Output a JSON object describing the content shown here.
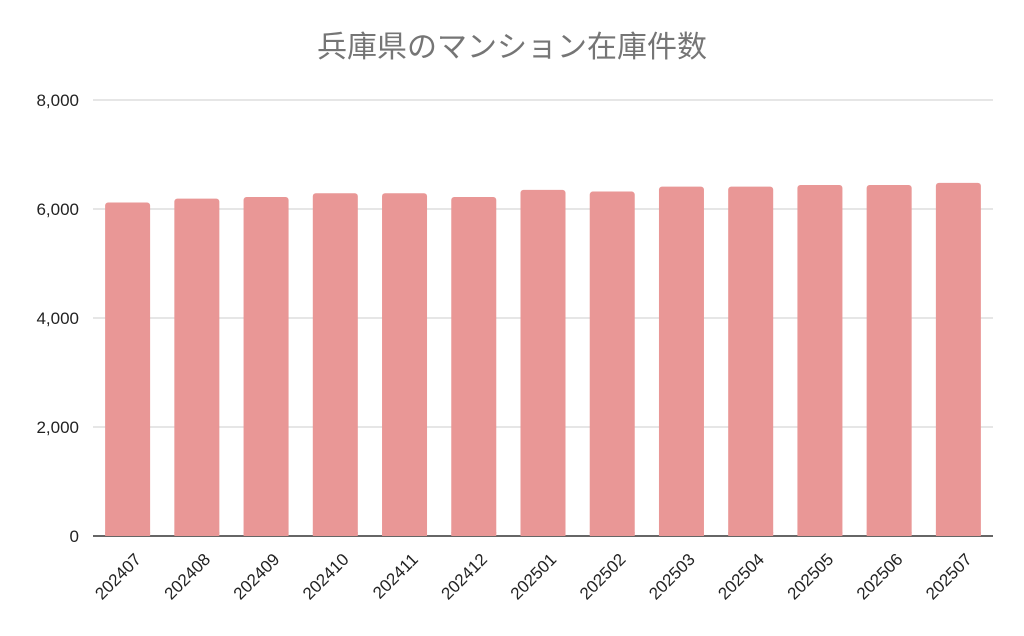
{
  "chart_data": {
    "type": "bar",
    "title": "兵庫県のマンション在庫件数",
    "xlabel": "",
    "ylabel": "",
    "categories": [
      "202407",
      "202408",
      "202409",
      "202410",
      "202411",
      "202412",
      "202501",
      "202502",
      "202503",
      "202504",
      "202505",
      "202506",
      "202507"
    ],
    "values": [
      6120,
      6190,
      6220,
      6290,
      6290,
      6220,
      6350,
      6320,
      6410,
      6410,
      6440,
      6440,
      6480
    ],
    "ylim": [
      0,
      8000
    ],
    "yticks": [
      0,
      2000,
      4000,
      6000,
      8000
    ],
    "ytick_labels": [
      "0",
      "2,000",
      "4,000",
      "6,000",
      "8,000"
    ],
    "grid": true,
    "bar_color": "#e99796",
    "grid_color": "#cccccc",
    "axis_color": "#333333"
  }
}
